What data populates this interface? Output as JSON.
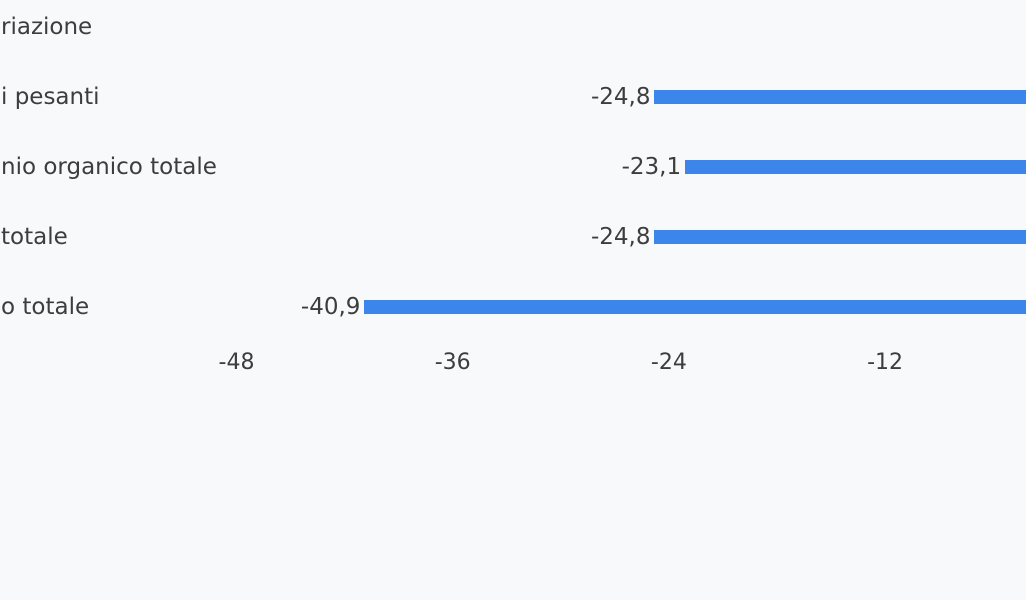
{
  "chart_data": {
    "type": "bar",
    "orientation": "horizontal",
    "title": "",
    "categories": [
      "riazione",
      "i pesanti",
      "nio organico totale",
      "totale",
      "o totale"
    ],
    "series": [
      {
        "name": "",
        "values": [
          null,
          -24.8,
          -23.1,
          -24.8,
          -40.9
        ]
      }
    ],
    "value_labels": [
      "",
      "-24,8",
      "-23,1",
      "-24,8",
      "-40,9"
    ],
    "x_axis": {
      "ticks": [
        -48,
        -36,
        -24,
        -12
      ],
      "tick_labels": [
        "-48",
        "-36",
        "-24",
        "-12"
      ],
      "visible_range": [
        -61.1,
        -4.2
      ]
    },
    "grid": false,
    "legend": "none",
    "notes": "labels and bars are clipped at the left/right edges of the viewport",
    "colors": {
      "bar": "#3c86eb",
      "background": "#f8f9fa",
      "text": "#3d3d3d"
    }
  }
}
